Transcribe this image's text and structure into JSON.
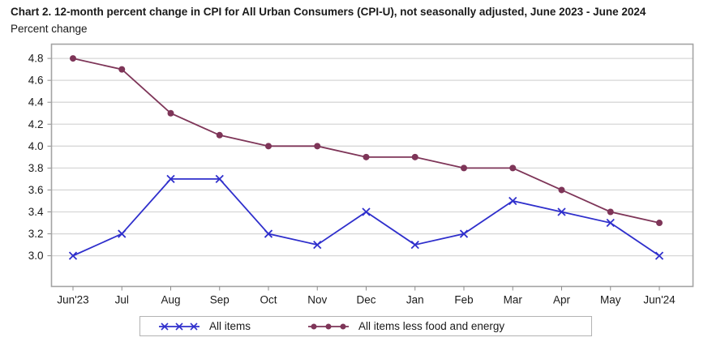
{
  "chart_data": {
    "type": "line",
    "title": "Chart 2. 12-month percent change in CPI for All Urban Consumers (CPI-U), not seasonally adjusted, June 2023 - June 2024",
    "ylabel": "Percent change",
    "xlabel": "",
    "categories": [
      "Jun'23",
      "Jul",
      "Aug",
      "Sep",
      "Oct",
      "Nov",
      "Dec",
      "Jan",
      "Feb",
      "Mar",
      "Apr",
      "May",
      "Jun'24"
    ],
    "series": [
      {
        "name": "All items",
        "marker": "x",
        "color": "#2f2fcc",
        "values": [
          3.0,
          3.2,
          3.7,
          3.7,
          3.2,
          3.1,
          3.4,
          3.1,
          3.2,
          3.5,
          3.4,
          3.3,
          3.0
        ]
      },
      {
        "name": "All items less food and energy",
        "marker": "circle",
        "color": "#7e3558",
        "values": [
          4.8,
          4.7,
          4.3,
          4.1,
          4.0,
          4.0,
          3.9,
          3.9,
          3.8,
          3.8,
          3.6,
          3.4,
          3.3
        ]
      }
    ],
    "y_ticks": [
      3.0,
      3.2,
      3.4,
      3.6,
      3.8,
      4.0,
      4.2,
      4.4,
      4.6,
      4.8
    ],
    "ylim": [
      2.72,
      4.93
    ],
    "grid": "horizontal",
    "grid_color": "#d7d7d7",
    "frame_color": "#a3a3a3",
    "tick_color": "#8c8c8c",
    "text_color": "#1a1a1a",
    "legend_position": "bottom"
  }
}
